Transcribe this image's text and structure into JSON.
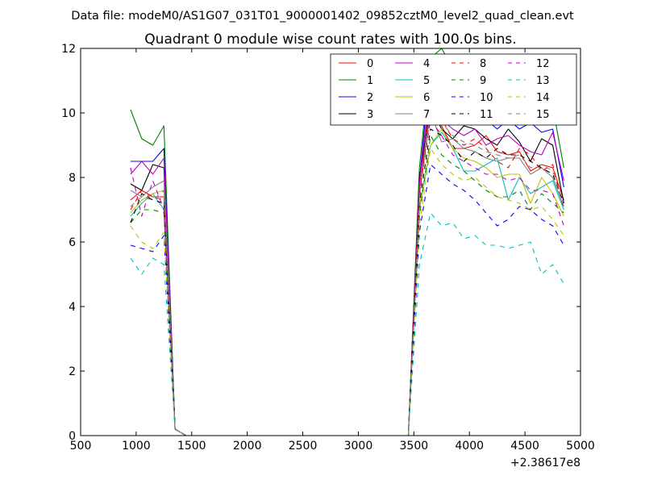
{
  "chart_data": {
    "type": "line",
    "suptitle": "Data file: modeM0/AS1G07_031T01_9000001402_09852cztM0_level2_quad_clean.evt",
    "title": "Quadrant 0 module wise count rates with 100.0s bins.",
    "xlabel": "",
    "ylabel": "",
    "x_offset_label": "+2.38617e8",
    "xlim": [
      500,
      5000
    ],
    "ylim": [
      0,
      12
    ],
    "xticks": [
      "500",
      "1000",
      "1500",
      "2000",
      "2500",
      "3000",
      "3500",
      "4000",
      "4500",
      "5000"
    ],
    "yticks": [
      "0",
      "2",
      "4",
      "6",
      "8",
      "10",
      "12"
    ],
    "grid": false,
    "legend_position": "top-right",
    "x": [
      950,
      1050,
      1150,
      1250,
      1350,
      1450,
      1550,
      1650,
      1750,
      1850,
      1950,
      2050,
      2150,
      2250,
      2350,
      2450,
      2550,
      2650,
      2750,
      2850,
      2950,
      3050,
      3150,
      3250,
      3350,
      3450,
      3550,
      3650,
      3750,
      3850,
      3950,
      4050,
      4150,
      4250,
      4350,
      4450,
      4550,
      4650,
      4750,
      4850
    ],
    "series": [
      {
        "name": "0",
        "color": "#ff0000",
        "dash": "solid",
        "values": [
          7.3,
          7.6,
          7.4,
          7.4,
          0.2,
          0.0,
          0.0,
          0.0,
          0.0,
          0.0,
          0.0,
          0.0,
          0.0,
          0.0,
          0.0,
          0.0,
          0.0,
          0.0,
          0.0,
          0.0,
          0.0,
          0.0,
          0.0,
          0.0,
          0.0,
          0.0,
          7.5,
          10.7,
          9.6,
          8.9,
          8.9,
          9.0,
          9.3,
          8.8,
          8.7,
          8.8,
          8.2,
          8.4,
          8.3,
          7.3
        ]
      },
      {
        "name": "1",
        "color": "#008000",
        "dash": "solid",
        "values": [
          10.1,
          9.2,
          9.0,
          9.6,
          0.2,
          0.0,
          0.0,
          0.0,
          0.0,
          0.0,
          0.0,
          0.0,
          0.0,
          0.0,
          0.0,
          0.0,
          0.0,
          0.0,
          0.0,
          0.0,
          0.0,
          0.0,
          0.0,
          0.0,
          0.0,
          0.0,
          8.3,
          11.7,
          12.0,
          11.4,
          11.6,
          11.0,
          10.6,
          11.5,
          10.6,
          10.0,
          10.4,
          9.9,
          10.2,
          8.3
        ]
      },
      {
        "name": "2",
        "color": "#0000ff",
        "dash": "solid",
        "values": [
          8.5,
          8.5,
          8.5,
          8.9,
          0.2,
          0.0,
          0.0,
          0.0,
          0.0,
          0.0,
          0.0,
          0.0,
          0.0,
          0.0,
          0.0,
          0.0,
          0.0,
          0.0,
          0.0,
          0.0,
          0.0,
          0.0,
          0.0,
          0.0,
          0.0,
          0.0,
          7.9,
          11.5,
          10.8,
          10.5,
          10.3,
          10.3,
          9.8,
          9.5,
          9.8,
          9.5,
          9.7,
          9.4,
          9.5,
          7.7
        ]
      },
      {
        "name": "3",
        "color": "#000000",
        "dash": "solid",
        "values": [
          7.8,
          7.6,
          8.4,
          8.3,
          0.2,
          0.0,
          0.0,
          0.0,
          0.0,
          0.0,
          0.0,
          0.0,
          0.0,
          0.0,
          0.0,
          0.0,
          0.0,
          0.0,
          0.0,
          0.0,
          0.0,
          0.0,
          0.0,
          0.0,
          0.0,
          0.0,
          8.0,
          10.2,
          9.5,
          9.2,
          9.6,
          9.5,
          9.2,
          9.0,
          9.5,
          9.1,
          8.5,
          9.2,
          9.0,
          7.2
        ]
      },
      {
        "name": "4",
        "color": "#bf00bf",
        "dash": "solid",
        "values": [
          8.1,
          8.5,
          8.1,
          8.6,
          0.2,
          0.0,
          0.0,
          0.0,
          0.0,
          0.0,
          0.0,
          0.0,
          0.0,
          0.0,
          0.0,
          0.0,
          0.0,
          0.0,
          0.0,
          0.0,
          0.0,
          0.0,
          0.0,
          0.0,
          0.0,
          0.0,
          7.8,
          11.0,
          9.8,
          9.5,
          9.3,
          9.5,
          9.0,
          9.2,
          9.3,
          9.0,
          8.8,
          8.7,
          9.4,
          7.9
        ]
      },
      {
        "name": "5",
        "color": "#00bfbf",
        "dash": "solid",
        "values": [
          6.8,
          7.2,
          7.5,
          7.0,
          0.2,
          0.0,
          0.0,
          0.0,
          0.0,
          0.0,
          0.0,
          0.0,
          0.0,
          0.0,
          0.0,
          0.0,
          0.0,
          0.0,
          0.0,
          0.0,
          0.0,
          0.0,
          0.0,
          0.0,
          0.0,
          0.0,
          7.0,
          9.0,
          9.4,
          8.9,
          8.2,
          8.2,
          8.4,
          8.6,
          7.3,
          8.0,
          7.5,
          7.7,
          7.9,
          7.0
        ]
      },
      {
        "name": "6",
        "color": "#bfbf00",
        "dash": "solid",
        "values": [
          6.9,
          7.3,
          7.5,
          7.6,
          0.2,
          0.0,
          0.0,
          0.0,
          0.0,
          0.0,
          0.0,
          0.0,
          0.0,
          0.0,
          0.0,
          0.0,
          0.0,
          0.0,
          0.0,
          0.0,
          0.0,
          0.0,
          0.0,
          0.0,
          0.0,
          0.0,
          7.1,
          9.0,
          9.5,
          8.9,
          8.6,
          8.5,
          8.3,
          8.0,
          8.1,
          8.1,
          7.2,
          8.0,
          7.5,
          6.8
        ]
      },
      {
        "name": "7",
        "color": "#808080",
        "dash": "solid",
        "values": [
          7.6,
          7.4,
          7.7,
          7.9,
          0.2,
          0.0,
          0.0,
          0.0,
          0.0,
          0.0,
          0.0,
          0.0,
          0.0,
          0.0,
          0.0,
          0.0,
          0.0,
          0.0,
          0.0,
          0.0,
          0.0,
          0.0,
          0.0,
          0.0,
          0.0,
          0.0,
          7.6,
          10.0,
          9.1,
          9.2,
          8.9,
          8.8,
          8.6,
          8.5,
          8.6,
          8.6,
          8.1,
          8.3,
          8.0,
          7.1
        ]
      },
      {
        "name": "8",
        "color": "#ff0000",
        "dash": "dashed",
        "values": [
          7.0,
          7.6,
          7.4,
          7.3,
          0.2,
          0.0,
          0.0,
          0.0,
          0.0,
          0.0,
          0.0,
          0.0,
          0.0,
          0.0,
          0.0,
          0.0,
          0.0,
          0.0,
          0.0,
          0.0,
          0.0,
          0.0,
          0.0,
          0.0,
          0.0,
          0.0,
          7.5,
          10.0,
          9.8,
          9.2,
          9.0,
          9.2,
          8.9,
          8.5,
          8.3,
          8.9,
          8.7,
          8.2,
          8.4,
          7.0
        ]
      },
      {
        "name": "9",
        "color": "#008000",
        "dash": "dashed",
        "values": [
          6.6,
          7.0,
          7.0,
          6.9,
          0.2,
          0.0,
          0.0,
          0.0,
          0.0,
          0.0,
          0.0,
          0.0,
          0.0,
          0.0,
          0.0,
          0.0,
          0.0,
          0.0,
          0.0,
          0.0,
          0.0,
          0.0,
          0.0,
          0.0,
          0.0,
          0.0,
          6.8,
          9.3,
          8.7,
          8.4,
          8.2,
          7.9,
          7.6,
          7.4,
          7.4,
          7.6,
          7.0,
          7.5,
          7.2,
          6.9
        ]
      },
      {
        "name": "10",
        "color": "#0000ff",
        "dash": "dashed",
        "values": [
          5.9,
          5.8,
          5.7,
          6.2,
          0.2,
          0.0,
          0.0,
          0.0,
          0.0,
          0.0,
          0.0,
          0.0,
          0.0,
          0.0,
          0.0,
          0.0,
          0.0,
          0.0,
          0.0,
          0.0,
          0.0,
          0.0,
          0.0,
          0.0,
          0.0,
          0.0,
          6.3,
          8.4,
          8.1,
          7.8,
          7.6,
          7.3,
          6.9,
          6.5,
          6.7,
          7.1,
          7.0,
          6.7,
          6.5,
          5.9
        ]
      },
      {
        "name": "11",
        "color": "#000000",
        "dash": "dashed",
        "values": [
          6.6,
          7.5,
          7.3,
          7.2,
          0.2,
          0.0,
          0.0,
          0.0,
          0.0,
          0.0,
          0.0,
          0.0,
          0.0,
          0.0,
          0.0,
          0.0,
          0.0,
          0.0,
          0.0,
          0.0,
          0.0,
          0.0,
          0.0,
          0.0,
          0.0,
          0.0,
          7.2,
          9.5,
          9.3,
          9.0,
          8.5,
          8.8,
          8.6,
          8.9,
          8.7,
          8.7,
          8.5,
          8.3,
          8.1,
          7.2
        ]
      },
      {
        "name": "12",
        "color": "#bf00bf",
        "dash": "dashed",
        "values": [
          8.3,
          6.8,
          7.9,
          7.0,
          0.2,
          0.0,
          0.0,
          0.0,
          0.0,
          0.0,
          0.0,
          0.0,
          0.0,
          0.0,
          0.0,
          0.0,
          0.0,
          0.0,
          0.0,
          0.0,
          0.0,
          0.0,
          0.0,
          0.0,
          0.0,
          0.0,
          7.5,
          9.8,
          9.3,
          8.7,
          8.5,
          8.3,
          8.1,
          8.1,
          7.9,
          8.0,
          7.6,
          7.6,
          7.5,
          6.5
        ]
      },
      {
        "name": "13",
        "color": "#00bfbf",
        "dash": "dashed",
        "values": [
          5.5,
          5.0,
          5.5,
          5.3,
          0.2,
          0.0,
          0.0,
          0.0,
          0.0,
          0.0,
          0.0,
          0.0,
          0.0,
          0.0,
          0.0,
          0.0,
          0.0,
          0.0,
          0.0,
          0.0,
          0.0,
          0.0,
          0.0,
          0.0,
          0.0,
          0.0,
          5.3,
          6.9,
          6.5,
          6.6,
          6.1,
          6.2,
          5.9,
          5.9,
          5.8,
          5.9,
          6.0,
          5.0,
          5.3,
          4.7
        ]
      },
      {
        "name": "14",
        "color": "#bfbf00",
        "dash": "dashed",
        "values": [
          6.5,
          6.0,
          5.8,
          6.3,
          0.2,
          0.0,
          0.0,
          0.0,
          0.0,
          0.0,
          0.0,
          0.0,
          0.0,
          0.0,
          0.0,
          0.0,
          0.0,
          0.0,
          0.0,
          0.0,
          0.0,
          0.0,
          0.0,
          0.0,
          0.0,
          0.0,
          6.5,
          8.9,
          8.4,
          8.1,
          7.9,
          8.0,
          7.7,
          7.4,
          7.3,
          7.2,
          7.0,
          7.1,
          6.7,
          6.2
        ]
      },
      {
        "name": "15",
        "color": "#808080",
        "dash": "dashed",
        "values": [
          7.1,
          7.4,
          7.3,
          7.6,
          0.2,
          0.0,
          0.0,
          0.0,
          0.0,
          0.0,
          0.0,
          0.0,
          0.0,
          0.0,
          0.0,
          0.0,
          0.0,
          0.0,
          0.0,
          0.0,
          0.0,
          0.0,
          0.0,
          0.0,
          0.0,
          0.0,
          7.3,
          10.2,
          9.7,
          9.3,
          9.1,
          9.0,
          8.8,
          8.7,
          8.6,
          8.7,
          8.3,
          8.4,
          8.2,
          7.1
        ]
      }
    ]
  }
}
